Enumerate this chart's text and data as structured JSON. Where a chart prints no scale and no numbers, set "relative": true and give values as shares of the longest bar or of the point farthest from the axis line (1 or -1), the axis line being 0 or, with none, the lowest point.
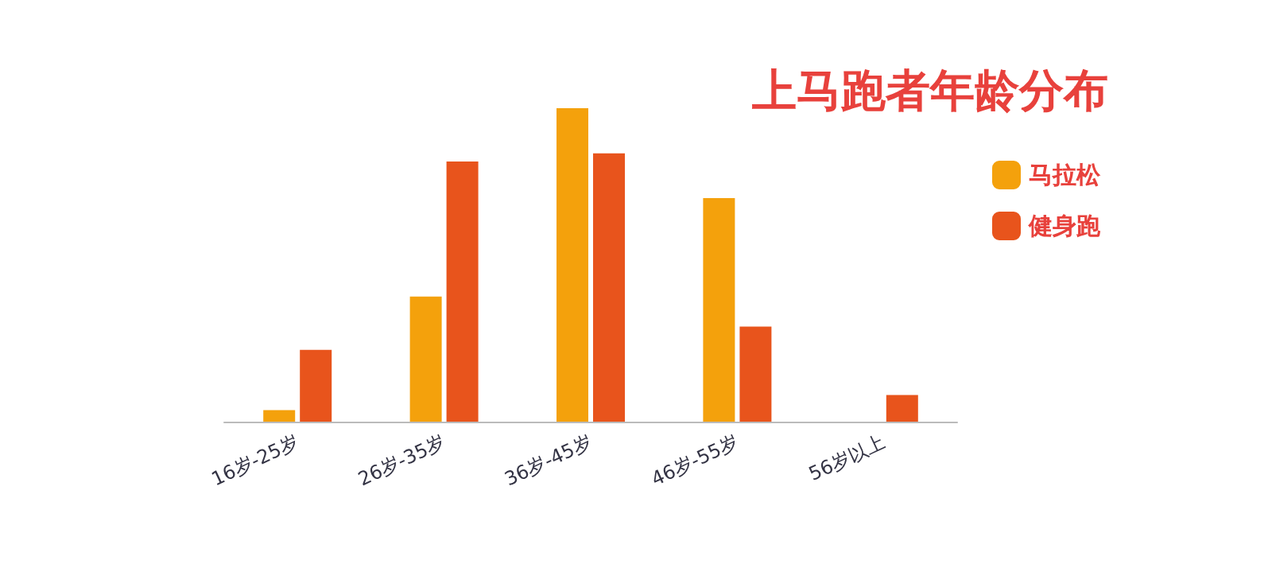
{
  "chart_data": {
    "type": "bar",
    "title": "上马跑者年龄分布",
    "categories": [
      "16岁-25岁",
      "26岁-35岁",
      "36岁-45岁",
      "46岁-55岁",
      "56岁以上"
    ],
    "relative": true,
    "legend": "top right",
    "series": [
      {
        "name": "马拉松",
        "color": "#f4a10c",
        "values": [
          0.037,
          0.399,
          1,
          0.713,
          0
        ]
      },
      {
        "name": "健身跑",
        "color": "#e8541c",
        "values": [
          0.229,
          0.83,
          0.856,
          0.303,
          0.085
        ]
      }
    ]
  }
}
